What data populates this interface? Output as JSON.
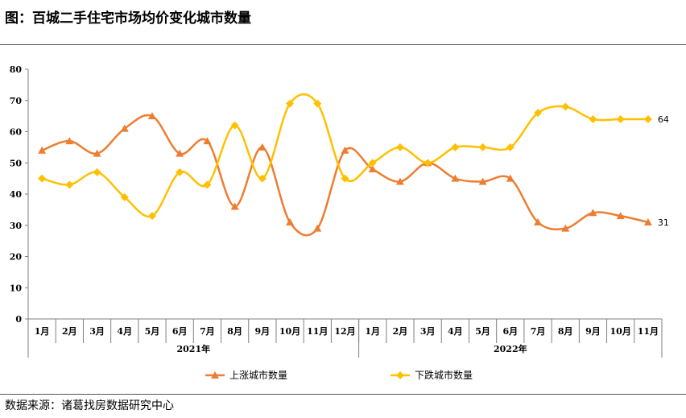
{
  "title": "图：百城二手住宅市场均价变化城市数量",
  "source": "数据来源：诸葛找房数据研究中心",
  "colors": {
    "up": "#ED7D31",
    "down": "#FFC000",
    "axis": "#7F7F7F"
  },
  "chart_data": {
    "type": "line",
    "title": "百城二手住宅市场均价变化城市数量",
    "categories": [
      "1月",
      "2月",
      "3月",
      "4月",
      "5月",
      "6月",
      "7月",
      "8月",
      "9月",
      "10月",
      "11月",
      "12月",
      "1月",
      "2月",
      "3月",
      "4月",
      "5月",
      "6月",
      "7月",
      "8月",
      "9月",
      "10月",
      "11月"
    ],
    "year_groups": [
      {
        "label": "2021年",
        "count": 12
      },
      {
        "label": "2022年",
        "count": 11
      }
    ],
    "y_ticks": [
      0,
      10,
      20,
      30,
      40,
      50,
      60,
      70,
      80
    ],
    "ylim": [
      0,
      80
    ],
    "xlabel": "",
    "ylabel": "",
    "grid": false,
    "legend_position": "bottom",
    "series": [
      {
        "name": "上涨城市数量",
        "marker": "triangle",
        "color": "#ED7D31",
        "values": [
          54,
          57,
          53,
          61,
          65,
          53,
          57,
          36,
          55,
          31,
          29,
          54,
          48,
          44,
          50,
          45,
          44,
          45,
          31,
          29,
          34,
          33,
          31
        ],
        "end_label": "31"
      },
      {
        "name": "下跌城市数量",
        "marker": "diamond",
        "color": "#FFC000",
        "values": [
          45,
          43,
          47,
          39,
          33,
          47,
          43,
          62,
          45,
          69,
          69,
          45,
          50,
          55,
          50,
          55,
          55,
          55,
          66,
          68,
          64,
          64,
          64
        ],
        "end_label": "64"
      }
    ]
  }
}
